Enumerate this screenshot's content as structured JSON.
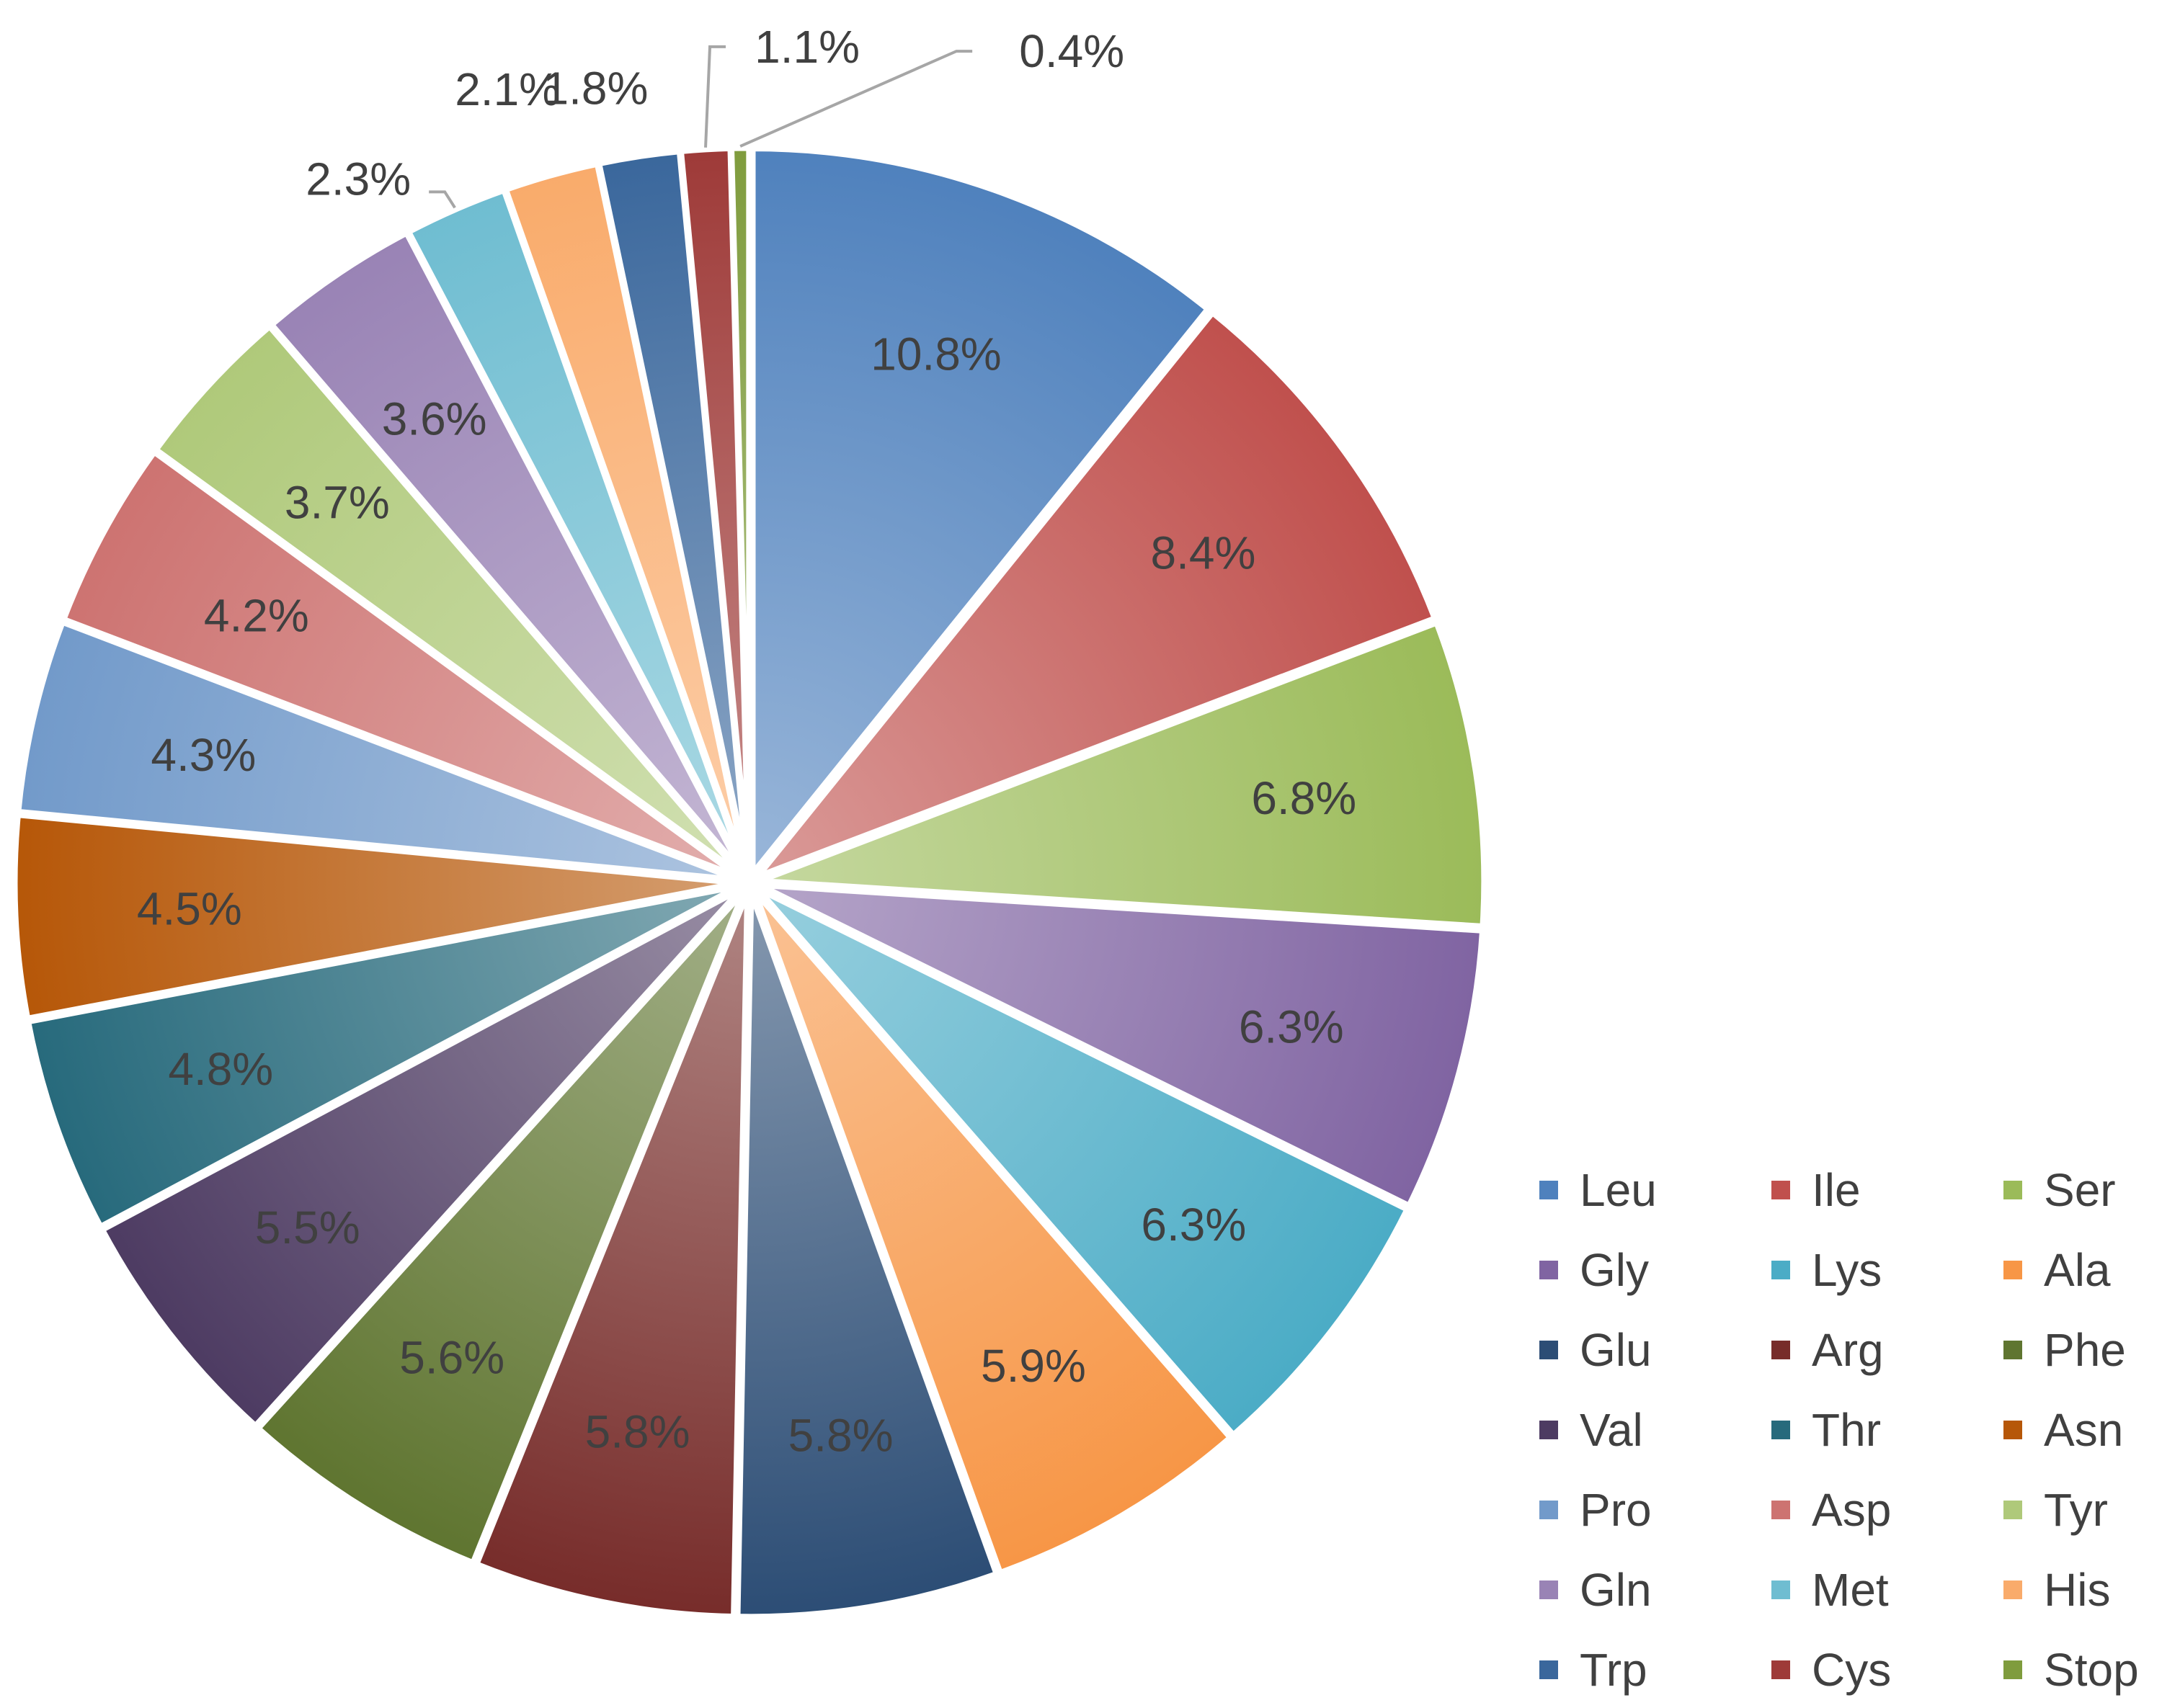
{
  "chart_data": {
    "type": "pie",
    "title": "",
    "start_angle_deg": 0,
    "direction": "clockwise",
    "legend_position": "bottom-right",
    "legend_columns": 3,
    "exploded": true,
    "slices": [
      {
        "label": "Leu",
        "value": 10.8,
        "display": "10.8%",
        "color": "#4f81bd"
      },
      {
        "label": "Ile",
        "value": 8.4,
        "display": "8.4%",
        "color": "#c0504d"
      },
      {
        "label": "Ser",
        "value": 6.8,
        "display": "6.8%",
        "color": "#9bbb59"
      },
      {
        "label": "Gly",
        "value": 6.3,
        "display": "6.3%",
        "color": "#8064a2"
      },
      {
        "label": "Lys",
        "value": 6.3,
        "display": "6.3%",
        "color": "#4bacc6"
      },
      {
        "label": "Ala",
        "value": 5.9,
        "display": "5.9%",
        "color": "#f79646"
      },
      {
        "label": "Glu",
        "value": 5.8,
        "display": "5.8%",
        "color": "#2c4d75"
      },
      {
        "label": "Arg",
        "value": 5.8,
        "display": "5.8%",
        "color": "#772c2a"
      },
      {
        "label": "Phe",
        "value": 5.6,
        "display": "5.6%",
        "color": "#5f7530"
      },
      {
        "label": "Val",
        "value": 5.5,
        "display": "5.5%",
        "color": "#4d3b62"
      },
      {
        "label": "Thr",
        "value": 4.8,
        "display": "4.8%",
        "color": "#276a7c"
      },
      {
        "label": "Asn",
        "value": 4.5,
        "display": "4.5%",
        "color": "#b65708"
      },
      {
        "label": "Pro",
        "value": 4.3,
        "display": "4.3%",
        "color": "#729aca"
      },
      {
        "label": "Asp",
        "value": 4.2,
        "display": "4.2%",
        "color": "#cd7371"
      },
      {
        "label": "Tyr",
        "value": 3.7,
        "display": "3.7%",
        "color": "#afc97a"
      },
      {
        "label": "Gln",
        "value": 3.6,
        "display": "3.6%",
        "color": "#9983b5"
      },
      {
        "label": "Met",
        "value": 2.3,
        "display": "2.3%",
        "color": "#6fbdd1"
      },
      {
        "label": "His",
        "value": 2.1,
        "display": "2.1%",
        "color": "#f9ab6b"
      },
      {
        "label": "Trp",
        "value": 1.8,
        "display": "1.8%",
        "color": "#3a679c"
      },
      {
        "label": "Cys",
        "value": 1.1,
        "display": "1.1%",
        "color": "#9e3a38"
      },
      {
        "label": "Stop",
        "value": 0.4,
        "display": "0.4%",
        "color": "#7f9c3d"
      }
    ]
  }
}
